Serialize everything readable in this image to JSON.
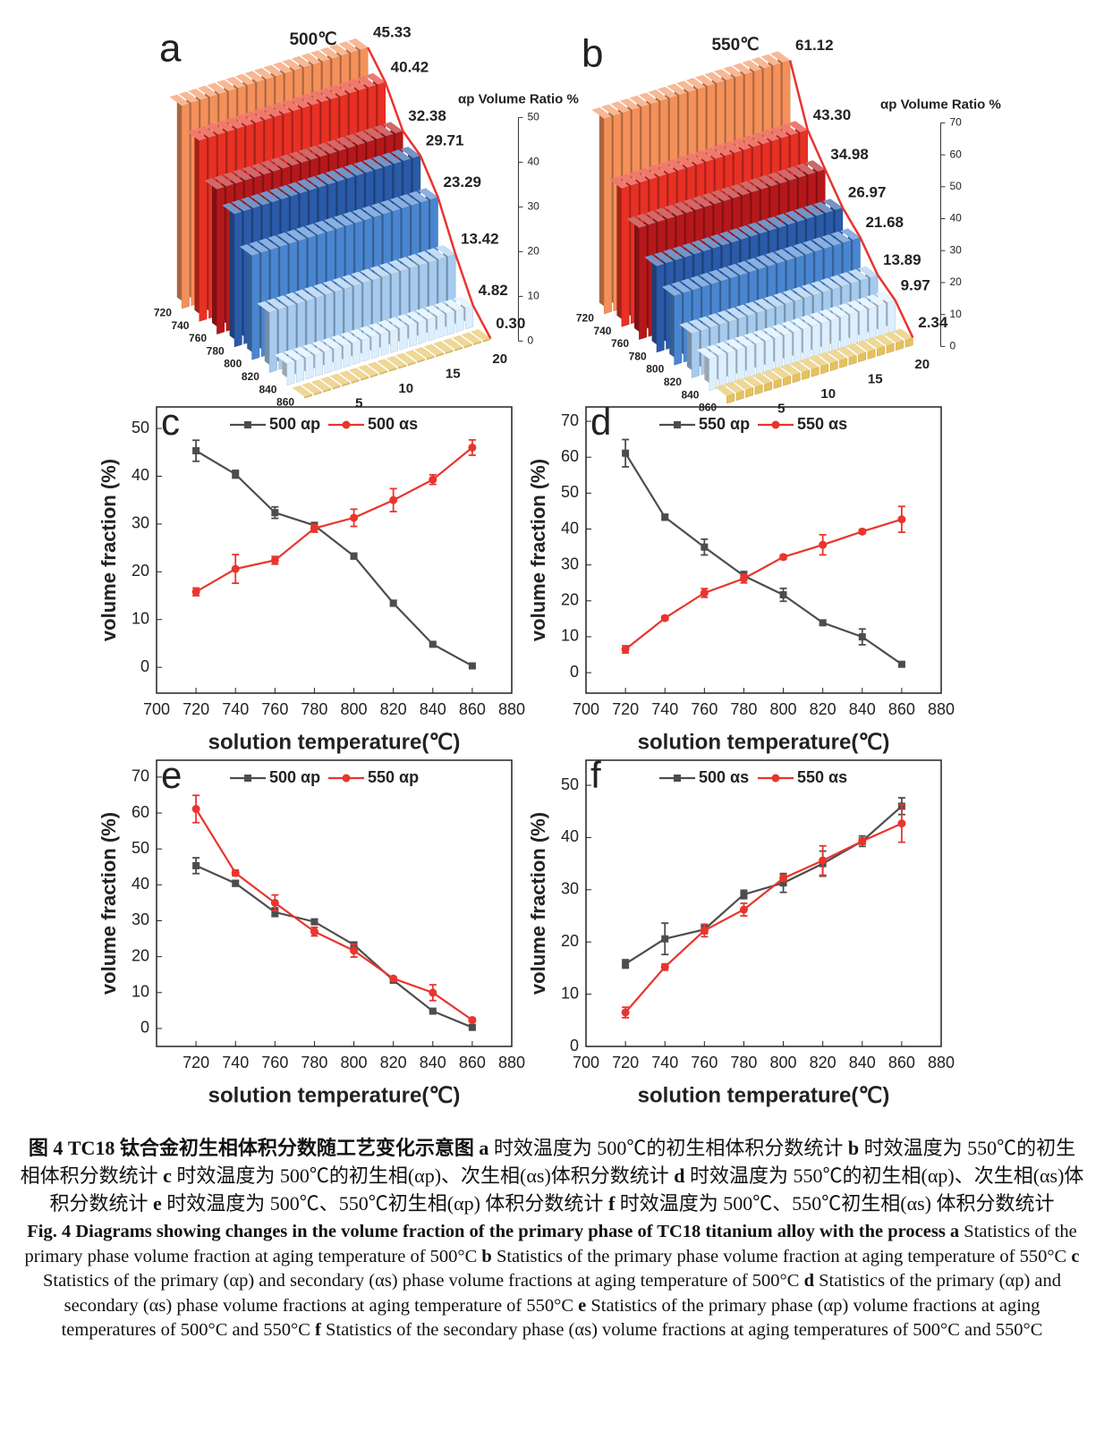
{
  "chart_data": [
    {
      "type": "bar3d",
      "panel": "a",
      "title": "500℃",
      "zlabel": "αp Volume Ratio %",
      "categories": [
        720,
        740,
        760,
        780,
        800,
        820,
        840,
        860
      ],
      "values": [
        45.33,
        40.42,
        32.38,
        29.71,
        23.29,
        13.42,
        4.82,
        0.3
      ],
      "value_labels": [
        "45.33",
        "40.42",
        "32.38",
        "29.71",
        "23.29",
        "13.42",
        "4.82",
        "0.30"
      ],
      "colors": [
        "#f4915a",
        "#e83024",
        "#b5181b",
        "#2a5aa8",
        "#4a86d0",
        "#a6cbee",
        "#dcefff",
        "#e6c15c"
      ],
      "trend_color": "#e8352e",
      "zlim": [
        0,
        50
      ],
      "zticks": [
        0,
        10,
        20,
        30,
        40,
        50
      ],
      "xlim": [
        0,
        21
      ],
      "xticks": [
        5,
        10,
        15,
        20
      ]
    },
    {
      "type": "bar3d",
      "panel": "b",
      "title": "550℃",
      "zlabel": "αp Volume Ratio %",
      "categories": [
        720,
        740,
        760,
        780,
        800,
        820,
        840,
        860
      ],
      "values": [
        61.12,
        43.3,
        34.98,
        26.97,
        21.68,
        13.89,
        9.97,
        2.34
      ],
      "value_labels": [
        "61.12",
        "43.30",
        "34.98",
        "26.97",
        "21.68",
        "13.89",
        "9.97",
        "2.34"
      ],
      "colors": [
        "#f4915a",
        "#e83024",
        "#b5181b",
        "#2a5aa8",
        "#4a86d0",
        "#a6cbee",
        "#dcefff",
        "#e6c15c"
      ],
      "trend_color": "#e8352e",
      "zlim": [
        0,
        70
      ],
      "zticks": [
        0,
        10,
        20,
        30,
        40,
        50,
        60,
        70
      ],
      "xlim": [
        0,
        21
      ],
      "xticks": [
        5,
        10,
        15,
        20
      ]
    },
    {
      "type": "line",
      "panel": "c",
      "xlabel": "solution temperature(℃)",
      "ylabel": "volume fraction (%)",
      "x": [
        720,
        740,
        760,
        780,
        800,
        820,
        840,
        860
      ],
      "xlim": [
        700,
        880
      ],
      "xticks": [
        700,
        720,
        740,
        760,
        780,
        800,
        820,
        840,
        860,
        880
      ],
      "ylim": [
        -5.4,
        54.5
      ],
      "yticks": [
        0,
        10,
        20,
        30,
        40,
        50
      ],
      "series": [
        {
          "name": "500 αp",
          "color": "#4d4d4d",
          "marker": "square",
          "values": [
            45.33,
            40.42,
            32.38,
            29.71,
            23.29,
            13.42,
            4.82,
            0.3
          ],
          "errors": [
            2.2,
            0.8,
            1.2,
            0.6,
            0.6,
            0.6,
            0.3,
            0.3
          ]
        },
        {
          "name": "500 αs",
          "color": "#e8352e",
          "marker": "circle",
          "values": [
            15.8,
            20.6,
            22.4,
            29.1,
            31.3,
            35.0,
            39.3,
            46.0
          ],
          "errors": [
            0.8,
            3.0,
            0.8,
            0.8,
            1.8,
            2.4,
            1.0,
            1.6
          ]
        }
      ]
    },
    {
      "type": "line",
      "panel": "d",
      "xlabel": "solution temperature(℃)",
      "ylabel": "volume fraction (%)",
      "x": [
        720,
        740,
        760,
        780,
        800,
        820,
        840,
        860
      ],
      "xlim": [
        700,
        880
      ],
      "xticks": [
        700,
        720,
        740,
        760,
        780,
        800,
        820,
        840,
        860,
        880
      ],
      "ylim": [
        -5.7,
        74
      ],
      "yticks": [
        0,
        10,
        20,
        30,
        40,
        50,
        60,
        70
      ],
      "series": [
        {
          "name": "550 αp",
          "color": "#4d4d4d",
          "marker": "square",
          "values": [
            61.12,
            43.3,
            34.98,
            26.97,
            21.68,
            13.89,
            9.97,
            2.34
          ],
          "errors": [
            3.8,
            0.8,
            2.2,
            1.2,
            1.8,
            0.5,
            2.2,
            0.5
          ]
        },
        {
          "name": "550 αs",
          "color": "#e8352e",
          "marker": "circle",
          "values": [
            6.5,
            15.2,
            22.2,
            26.2,
            32.2,
            35.6,
            39.3,
            42.7
          ],
          "errors": [
            1.0,
            0.6,
            1.2,
            1.2,
            0.6,
            2.8,
            0.6,
            3.6
          ]
        }
      ]
    },
    {
      "type": "line",
      "panel": "e",
      "xlabel": "solution temperature(℃)",
      "ylabel": "volume fraction (%)",
      "x": [
        720,
        740,
        760,
        780,
        800,
        820,
        840,
        860
      ],
      "xlim": [
        700,
        880
      ],
      "xticks": [
        720,
        740,
        760,
        780,
        800,
        820,
        840,
        860,
        880
      ],
      "ylim": [
        -5,
        74.7
      ],
      "yticks": [
        0,
        10,
        20,
        30,
        40,
        50,
        60,
        70
      ],
      "series": [
        {
          "name": "500 αp",
          "color": "#4d4d4d",
          "marker": "square",
          "values": [
            45.33,
            40.42,
            32.38,
            29.71,
            23.29,
            13.42,
            4.82,
            0.3
          ],
          "errors": [
            2.2,
            0.8,
            1.2,
            0.6,
            0.6,
            0.6,
            0.3,
            0.3
          ]
        },
        {
          "name": "550 αp",
          "color": "#e8352e",
          "marker": "circle",
          "values": [
            61.12,
            43.3,
            34.98,
            26.97,
            21.68,
            13.89,
            9.97,
            2.34
          ],
          "errors": [
            3.8,
            0.8,
            2.2,
            1.2,
            1.8,
            0.5,
            2.2,
            0.5
          ]
        }
      ]
    },
    {
      "type": "line",
      "panel": "f",
      "xlabel": "solution temperature(℃)",
      "ylabel": "volume fraction (%)",
      "x": [
        720,
        740,
        760,
        780,
        800,
        820,
        840,
        860
      ],
      "xlim": [
        700,
        880
      ],
      "xticks": [
        700,
        720,
        740,
        760,
        780,
        800,
        820,
        840,
        860,
        880
      ],
      "ylim": [
        0,
        54.8
      ],
      "yticks": [
        0,
        10,
        20,
        30,
        40,
        50
      ],
      "series": [
        {
          "name": "500 αs",
          "color": "#4d4d4d",
          "marker": "square",
          "values": [
            15.8,
            20.6,
            22.4,
            29.1,
            31.3,
            35.0,
            39.3,
            46.0
          ],
          "errors": [
            0.8,
            3.0,
            0.8,
            0.8,
            1.8,
            2.4,
            1.0,
            1.6
          ]
        },
        {
          "name": "550 αs",
          "color": "#e8352e",
          "marker": "circle",
          "values": [
            6.5,
            15.2,
            22.2,
            26.2,
            32.2,
            35.6,
            39.3,
            42.7
          ],
          "errors": [
            1.0,
            0.6,
            1.2,
            1.2,
            0.6,
            2.8,
            0.6,
            3.6
          ]
        }
      ]
    }
  ],
  "caption": {
    "zh": [
      {
        "text": "图 4 TC18 钛合金初生相体积分数随工艺变化示意图",
        "bold": true
      },
      {
        "text": " a",
        "bold": true
      },
      {
        "text": " 时效温度为 500℃的初生相体积分数统计",
        "bold": false
      },
      {
        "text": " b",
        "bold": true
      },
      {
        "text": " 时效温度为 550℃的初生相体积分数统计",
        "bold": false
      },
      {
        "text": " c",
        "bold": true
      },
      {
        "text": " 时效温度为 500℃的初生相(αp)、次生相(αs)体积分数统计",
        "bold": false
      },
      {
        "text": " d",
        "bold": true
      },
      {
        "text": " 时效温度为 550℃的初生相(αp)、次生相(αs)体积分数统计",
        "bold": false
      },
      {
        "text": " e",
        "bold": true
      },
      {
        "text": " 时效温度为 500℃、550℃初生相(αp) 体积分数统计",
        "bold": false
      },
      {
        "text": " f",
        "bold": true
      },
      {
        "text": " 时效温度为 500℃、550℃初生相(αs) 体积分数统计",
        "bold": false
      }
    ],
    "en": [
      {
        "text": "Fig. 4 Diagrams showing changes in the volume fraction of the primary phase of TC18 titanium alloy with the process",
        "bold": true
      },
      {
        "text": " a",
        "bold": true
      },
      {
        "text": " Statistics of the primary phase volume fraction at aging temperature of 500°C",
        "bold": false
      },
      {
        "text": " b",
        "bold": true
      },
      {
        "text": " Statistics of the primary phase volume fraction at aging temperature of 550°C",
        "bold": false
      },
      {
        "text": " c",
        "bold": true
      },
      {
        "text": " Statistics of the primary (αp) and secondary (αs) phase volume fractions at aging temperature of 500°C",
        "bold": false
      },
      {
        "text": " d",
        "bold": true
      },
      {
        "text": " Statistics of the primary (αp) and secondary (αs) phase volume fractions at aging temperature of 550°C",
        "bold": false
      },
      {
        "text": " e",
        "bold": true
      },
      {
        "text": " Statistics of the primary phase (αp) volume fractions at aging temperatures of 500°C and 550°C",
        "bold": false
      },
      {
        "text": " f",
        "bold": true
      },
      {
        "text": " Statistics of the secondary phase (αs) volume fractions at aging temperatures of 500°C and 550°C",
        "bold": false
      }
    ]
  }
}
